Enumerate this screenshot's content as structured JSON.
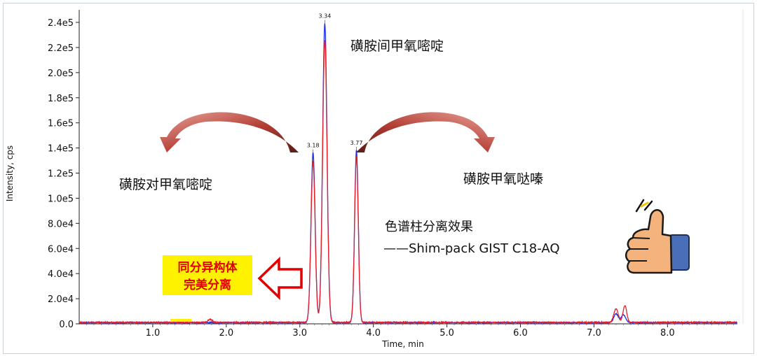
{
  "chart_data": {
    "type": "line",
    "xlabel": "Time, min",
    "ylabel": "Intensity, cps",
    "xlim": [
      0.0,
      8.95
    ],
    "ylim": [
      0,
      250000
    ],
    "x_ticks": [
      "1.0",
      "2.0",
      "3.0",
      "4.0",
      "5.0",
      "6.0",
      "7.0",
      "8.0"
    ],
    "x_tick_values": [
      1,
      2,
      3,
      4,
      5,
      6,
      7,
      8
    ],
    "y_ticks": [
      "0.0",
      "2.0e4",
      "4.0e4",
      "6.0e4",
      "8.0e4",
      "1.0e5",
      "1.2e5",
      "1.4e5",
      "1.6e5",
      "1.8e5",
      "2.0e5",
      "2.2e5",
      "2.4e5"
    ],
    "y_tick_values": [
      0,
      20000,
      40000,
      60000,
      80000,
      100000,
      120000,
      140000,
      160000,
      180000,
      200000,
      220000,
      240000
    ],
    "series": [
      {
        "color": "#1f2ee8",
        "peaks": [
          {
            "x": 3.18,
            "y": 135000,
            "w": 0.028
          },
          {
            "x": 3.34,
            "y": 238000,
            "w": 0.03
          },
          {
            "x": 3.77,
            "y": 137000,
            "w": 0.025
          },
          {
            "x": 7.3,
            "y": 7000,
            "w": 0.03
          },
          {
            "x": 7.4,
            "y": 6000,
            "w": 0.03
          }
        ]
      },
      {
        "color": "#e8202a",
        "peaks": [
          {
            "x": 3.18,
            "y": 128000,
            "w": 0.028
          },
          {
            "x": 3.34,
            "y": 225000,
            "w": 0.03
          },
          {
            "x": 3.77,
            "y": 132000,
            "w": 0.025
          },
          {
            "x": 1.78,
            "y": 2500,
            "w": 0.03
          },
          {
            "x": 7.3,
            "y": 11000,
            "w": 0.03
          },
          {
            "x": 7.42,
            "y": 13500,
            "w": 0.025
          }
        ]
      }
    ],
    "peak_labels": [
      {
        "x": 3.18,
        "y": 135000,
        "text": "3.18"
      },
      {
        "x": 3.34,
        "y": 238000,
        "text": "3.34"
      },
      {
        "x": 3.77,
        "y": 137000,
        "text": "3.77"
      }
    ]
  },
  "annotations": {
    "middle_compound": "磺胺间甲氧嘧啶",
    "left_compound": "磺胺对甲氧嘧啶",
    "right_compound": "磺胺甲氧哒嗪",
    "column_line1": "色谱柱分离效果",
    "column_line2": "——Shim-pack GIST C18-AQ",
    "isomer_line1": "同分异构体",
    "isomer_line2": "完美分离"
  },
  "colors": {
    "arrow": "#b83a32",
    "highlight": "#fff200",
    "hollow_arrow": "#e00000",
    "thumb_skin": "#f4b37c",
    "sleeve": "#4a6fb8"
  },
  "icons": {
    "thumbs_up": "thumbs-up-icon",
    "hollow_arrow": "hollow-left-arrow-icon"
  }
}
